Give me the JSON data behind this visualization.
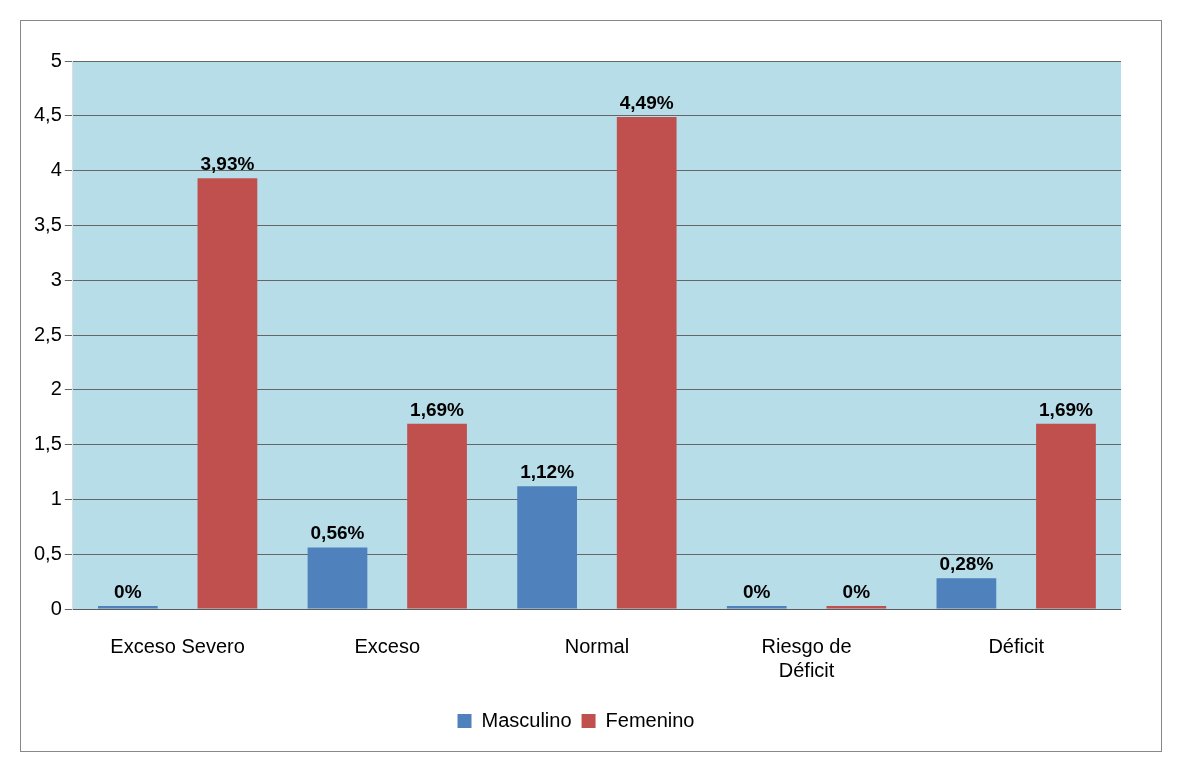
{
  "chart_data": {
    "type": "bar",
    "categories": [
      "Exceso Severo",
      "Exceso",
      "Normal",
      "Riesgo de Déficit",
      "Déficit"
    ],
    "series": [
      {
        "name": "Masculino",
        "color": "#4f81bd",
        "values": [
          0,
          0.56,
          1.12,
          0,
          0.28
        ],
        "value_labels": [
          "0%",
          "0,56%",
          "1,12%",
          "0%",
          "0,28%"
        ]
      },
      {
        "name": "Femenino",
        "color": "#c0504d",
        "values": [
          3.93,
          1.69,
          4.49,
          0,
          1.69
        ],
        "value_labels": [
          "3,93%",
          "1,69%",
          "4,49%",
          "0%",
          "1,69%"
        ]
      }
    ],
    "ylim": [
      0,
      5
    ],
    "yticks": [
      0,
      {
        "value": 0.5,
        "label": "0,5"
      },
      1,
      {
        "value": 1.5,
        "label": "1,5"
      },
      2,
      {
        "value": 2.5,
        "label": "2,5"
      },
      3,
      {
        "value": 3.5,
        "label": "3,5"
      },
      4,
      {
        "value": 4.5,
        "label": "4,5"
      },
      5
    ],
    "grid": "y",
    "legend": "bottom"
  }
}
